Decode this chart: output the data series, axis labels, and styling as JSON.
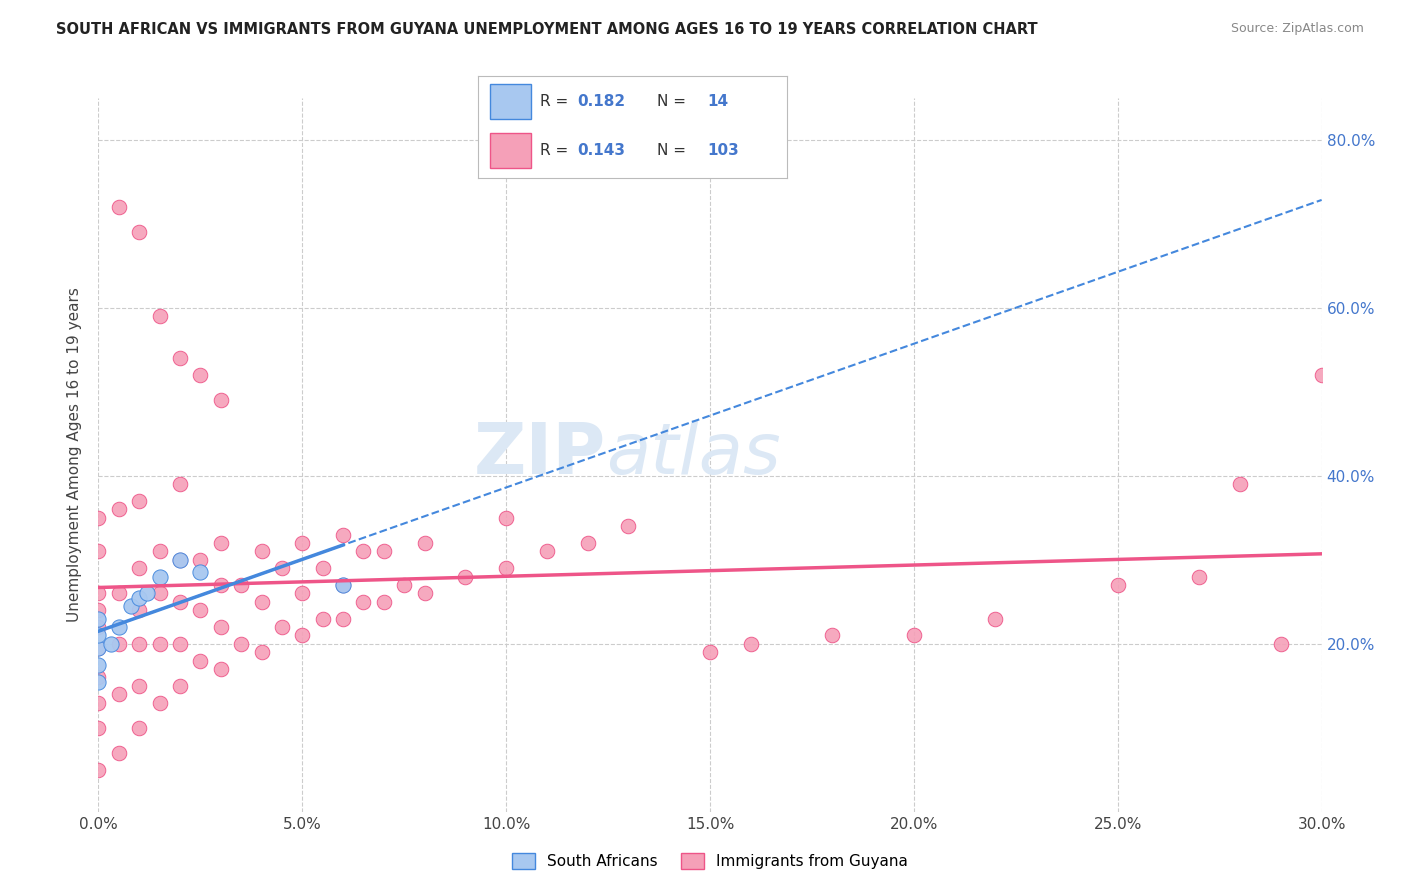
{
  "title": "SOUTH AFRICAN VS IMMIGRANTS FROM GUYANA UNEMPLOYMENT AMONG AGES 16 TO 19 YEARS CORRELATION CHART",
  "source": "Source: ZipAtlas.com",
  "ylabel_label": "Unemployment Among Ages 16 to 19 years",
  "xlim": [
    0.0,
    0.3
  ],
  "ylim": [
    0.0,
    0.85
  ],
  "color_sa": "#a8c8f0",
  "color_gu": "#f5a0b8",
  "trendline_sa_color": "#4488dd",
  "trendline_gu_color": "#ee5588",
  "watermark_color": "#dce8f5",
  "background_color": "#ffffff",
  "grid_color": "#cccccc",
  "sa_x": [
    0.0,
    0.0,
    0.0,
    0.0,
    0.0,
    0.003,
    0.005,
    0.008,
    0.01,
    0.012,
    0.015,
    0.02,
    0.025,
    0.06
  ],
  "sa_y": [
    0.155,
    0.175,
    0.195,
    0.21,
    0.23,
    0.2,
    0.22,
    0.245,
    0.255,
    0.26,
    0.28,
    0.3,
    0.285,
    0.27
  ],
  "gu_x": [
    0.0,
    0.0,
    0.0,
    0.0,
    0.0,
    0.0,
    0.0,
    0.0,
    0.0,
    0.0,
    0.005,
    0.005,
    0.005,
    0.005,
    0.005,
    0.01,
    0.01,
    0.01,
    0.01,
    0.01,
    0.01,
    0.015,
    0.015,
    0.015,
    0.015,
    0.02,
    0.02,
    0.02,
    0.02,
    0.02,
    0.025,
    0.025,
    0.025,
    0.03,
    0.03,
    0.03,
    0.03,
    0.035,
    0.035,
    0.04,
    0.04,
    0.04,
    0.045,
    0.045,
    0.05,
    0.05,
    0.05,
    0.055,
    0.055,
    0.06,
    0.06,
    0.06,
    0.065,
    0.065,
    0.07,
    0.07,
    0.075,
    0.08,
    0.08,
    0.09,
    0.1,
    0.1,
    0.11,
    0.12,
    0.13,
    0.15,
    0.16,
    0.18,
    0.2,
    0.22,
    0.25,
    0.27,
    0.28,
    0.29,
    0.3
  ],
  "gu_y": [
    0.05,
    0.1,
    0.13,
    0.16,
    0.195,
    0.22,
    0.24,
    0.26,
    0.31,
    0.35,
    0.07,
    0.14,
    0.2,
    0.26,
    0.36,
    0.1,
    0.15,
    0.2,
    0.24,
    0.29,
    0.37,
    0.13,
    0.2,
    0.26,
    0.31,
    0.15,
    0.2,
    0.25,
    0.3,
    0.39,
    0.18,
    0.24,
    0.3,
    0.17,
    0.22,
    0.27,
    0.32,
    0.2,
    0.27,
    0.19,
    0.25,
    0.31,
    0.22,
    0.29,
    0.21,
    0.26,
    0.32,
    0.23,
    0.29,
    0.23,
    0.27,
    0.33,
    0.25,
    0.31,
    0.25,
    0.31,
    0.27,
    0.26,
    0.32,
    0.28,
    0.29,
    0.35,
    0.31,
    0.32,
    0.34,
    0.19,
    0.2,
    0.21,
    0.21,
    0.23,
    0.27,
    0.28,
    0.39,
    0.2,
    0.52
  ],
  "gu_outlier_x": [
    0.005,
    0.01,
    0.015,
    0.02,
    0.025,
    0.03
  ],
  "gu_outlier_y": [
    0.72,
    0.69,
    0.59,
    0.54,
    0.52,
    0.49
  ]
}
